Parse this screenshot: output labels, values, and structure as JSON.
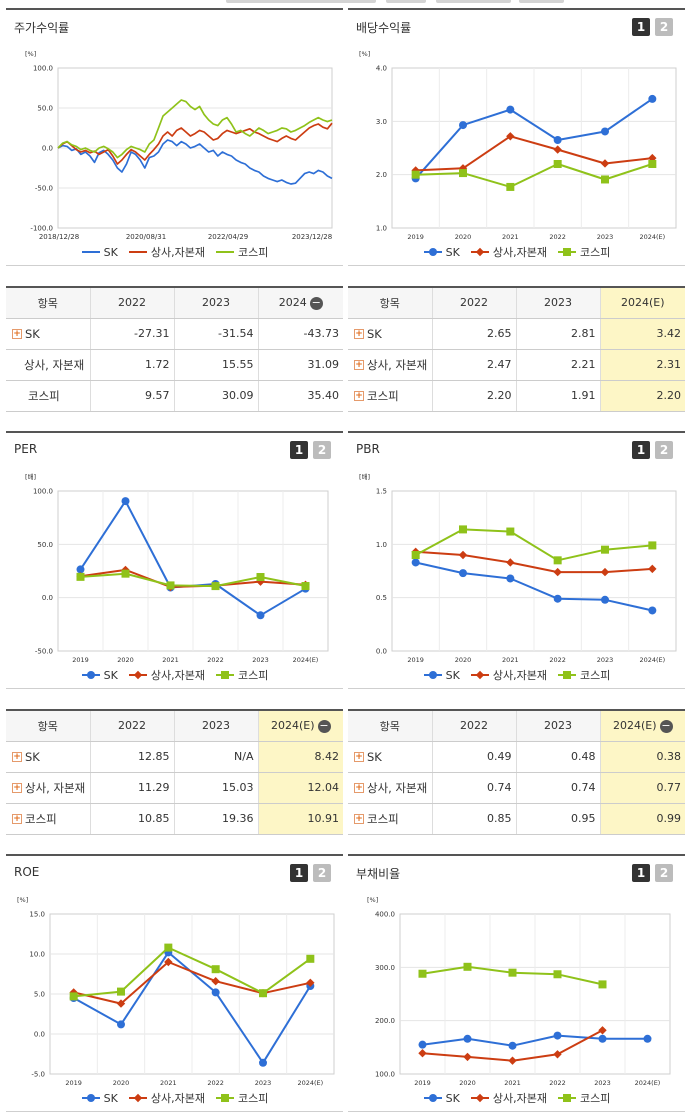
{
  "legend": [
    "SK",
    "상사,자본재",
    "코스피"
  ],
  "colors": {
    "SK": "#2e6fd6",
    "상사,자본재": "#cc3d12",
    "코스피": "#8fc21a"
  },
  "charts": {
    "stock": {
      "title": "주가수익률",
      "unit": "[%]"
    },
    "div": {
      "title": "배당수익률",
      "unit": "[%]"
    },
    "per": {
      "title": "PER",
      "unit": "[배]"
    },
    "pbr": {
      "title": "PBR",
      "unit": "[배]"
    },
    "roe": {
      "title": "ROE",
      "unit": "[%]"
    },
    "debt": {
      "title": "부채비율",
      "unit": "[%]"
    }
  },
  "page_buttons": [
    "1",
    "2"
  ],
  "table_header": "항목",
  "row_labels": [
    "SK",
    "상사, 자본재",
    "코스피"
  ],
  "tables": {
    "stock": {
      "cols": [
        "2022",
        "2023",
        "2024"
      ],
      "rows": [
        [
          "-27.31",
          "-31.54",
          "-43.73"
        ],
        [
          "1.72",
          "15.55",
          "31.09"
        ],
        [
          "9.57",
          "30.09",
          "35.40"
        ]
      ]
    },
    "div": {
      "cols": [
        "2022",
        "2023",
        "2024(E)"
      ],
      "rows": [
        [
          "2.65",
          "2.81",
          "3.42"
        ],
        [
          "2.47",
          "2.21",
          "2.31"
        ],
        [
          "2.20",
          "1.91",
          "2.20"
        ]
      ]
    },
    "per": {
      "cols": [
        "2022",
        "2023",
        "2024(E)"
      ],
      "rows": [
        [
          "12.85",
          "N/A",
          "8.42"
        ],
        [
          "11.29",
          "15.03",
          "12.04"
        ],
        [
          "10.85",
          "19.36",
          "10.91"
        ]
      ]
    },
    "pbr": {
      "cols": [
        "2022",
        "2023",
        "2024(E)"
      ],
      "rows": [
        [
          "0.49",
          "0.48",
          "0.38"
        ],
        [
          "0.74",
          "0.74",
          "0.77"
        ],
        [
          "0.85",
          "0.95",
          "0.99"
        ]
      ]
    }
  },
  "chart_data": [
    {
      "type": "line",
      "title": "주가수익률",
      "ylabel": "[%]",
      "ylim": [
        -100,
        100
      ],
      "yticks": [
        "100.0",
        "50.0",
        "0.0",
        "-50.0",
        "-100.0"
      ],
      "xticks": [
        "2018/12/28",
        "2020/08/31",
        "2022/04/29",
        "2023/12/28"
      ],
      "x_index_range": [
        0,
        60
      ],
      "series": [
        {
          "name": "SK",
          "values": [
            0,
            3,
            2,
            -3,
            -1,
            -8,
            -5,
            -10,
            -18,
            -6,
            -3,
            -8,
            -15,
            -25,
            -30,
            -20,
            -5,
            -8,
            -15,
            -25,
            -12,
            -10,
            -5,
            5,
            10,
            8,
            3,
            8,
            5,
            0,
            2,
            5,
            0,
            -5,
            -3,
            -10,
            -5,
            -8,
            -10,
            -15,
            -18,
            -20,
            -25,
            -28,
            -30,
            -35,
            -38,
            -40,
            -42,
            -40,
            -43,
            -45,
            -44,
            -38,
            -32,
            -30,
            -32,
            -28,
            -30,
            -35,
            -38
          ]
        },
        {
          "name": "상사,자본재",
          "values": [
            0,
            5,
            8,
            3,
            -2,
            -5,
            -3,
            -6,
            -4,
            -8,
            -5,
            -2,
            -10,
            -20,
            -15,
            -8,
            -2,
            -5,
            -10,
            -15,
            -8,
            -2,
            5,
            15,
            20,
            15,
            22,
            25,
            20,
            15,
            18,
            22,
            20,
            15,
            10,
            12,
            18,
            22,
            20,
            18,
            20,
            22,
            24,
            20,
            18,
            15,
            12,
            10,
            8,
            12,
            15,
            12,
            10,
            15,
            20,
            25,
            28,
            30,
            26,
            24,
            31
          ]
        },
        {
          "name": "코스피",
          "values": [
            0,
            6,
            8,
            4,
            2,
            -2,
            0,
            -3,
            -5,
            0,
            2,
            -1,
            -5,
            -12,
            -8,
            -2,
            2,
            0,
            -2,
            -5,
            5,
            10,
            25,
            40,
            45,
            50,
            55,
            60,
            58,
            52,
            48,
            52,
            42,
            35,
            30,
            28,
            35,
            38,
            30,
            20,
            22,
            18,
            15,
            20,
            25,
            22,
            18,
            20,
            22,
            25,
            24,
            20,
            22,
            25,
            28,
            32,
            35,
            38,
            35,
            33,
            35
          ]
        }
      ]
    },
    {
      "type": "line",
      "title": "배당수익률",
      "ylabel": "[%]",
      "ylim": [
        1.0,
        4.0
      ],
      "yticks": [
        "4.0",
        "3.0",
        "2.0",
        "1.0"
      ],
      "x": [
        "2019",
        "2020",
        "2021",
        "2022",
        "2023",
        "2024(E)"
      ],
      "series": [
        {
          "name": "SK",
          "values": [
            1.93,
            2.93,
            3.22,
            2.65,
            2.81,
            3.42
          ]
        },
        {
          "name": "상사,자본재",
          "values": [
            2.08,
            2.12,
            2.72,
            2.47,
            2.21,
            2.31
          ]
        },
        {
          "name": "코스피",
          "values": [
            2.0,
            2.03,
            1.77,
            2.2,
            1.91,
            2.2
          ]
        }
      ]
    },
    {
      "type": "line",
      "title": "PER",
      "ylabel": "[배]",
      "ylim": [
        -50,
        100
      ],
      "yticks": [
        "100.0",
        "50.0",
        "0.0",
        "-50.0"
      ],
      "x": [
        "2019",
        "2020",
        "2021",
        "2022",
        "2023",
        "2024(E)"
      ],
      "series": [
        {
          "name": "SK",
          "values": [
            26.5,
            90.5,
            9.5,
            12.85,
            -16.5,
            8.42
          ]
        },
        {
          "name": "상사,자본재",
          "values": [
            20.0,
            26.0,
            10.0,
            11.29,
            15.03,
            12.04
          ]
        },
        {
          "name": "코스피",
          "values": [
            19.5,
            22.5,
            11.5,
            10.85,
            19.36,
            10.91
          ]
        }
      ]
    },
    {
      "type": "line",
      "title": "PBR",
      "ylabel": "[배]",
      "ylim": [
        0.0,
        1.5
      ],
      "yticks": [
        "1.5",
        "1.0",
        "0.5",
        "0.0"
      ],
      "x": [
        "2019",
        "2020",
        "2021",
        "2022",
        "2023",
        "2024(E)"
      ],
      "series": [
        {
          "name": "SK",
          "values": [
            0.83,
            0.73,
            0.68,
            0.49,
            0.48,
            0.38
          ]
        },
        {
          "name": "상사,자본재",
          "values": [
            0.93,
            0.9,
            0.83,
            0.74,
            0.74,
            0.77
          ]
        },
        {
          "name": "코스피",
          "values": [
            0.9,
            1.14,
            1.12,
            0.85,
            0.95,
            0.99
          ]
        }
      ]
    },
    {
      "type": "line",
      "title": "ROE",
      "ylabel": "[%]",
      "ylim": [
        -5.0,
        15.0
      ],
      "yticks": [
        "15.0",
        "10.0",
        "5.0",
        "0.0",
        "-5.0"
      ],
      "x": [
        "2019",
        "2020",
        "2021",
        "2022",
        "2023",
        "2024(E)"
      ],
      "series": [
        {
          "name": "SK",
          "values": [
            4.5,
            1.2,
            10.2,
            5.2,
            -3.6,
            6.0
          ]
        },
        {
          "name": "상사,자본재",
          "values": [
            5.2,
            3.8,
            9.0,
            6.6,
            5.1,
            6.4
          ]
        },
        {
          "name": "코스피",
          "values": [
            4.7,
            5.3,
            10.8,
            8.1,
            5.1,
            9.4
          ]
        }
      ]
    },
    {
      "type": "line",
      "title": "부채비율",
      "ylabel": "[%]",
      "ylim": [
        100.0,
        400.0
      ],
      "yticks": [
        "400.0",
        "300.0",
        "200.0",
        "100.0"
      ],
      "x": [
        "2019",
        "2020",
        "2021",
        "2022",
        "2023",
        "2024(E)"
      ],
      "series": [
        {
          "name": "SK",
          "values": [
            155,
            166,
            153,
            172,
            166,
            166
          ]
        },
        {
          "name": "상사,자본재",
          "values": [
            139,
            132,
            125,
            137,
            182,
            null
          ]
        },
        {
          "name": "코스피",
          "values": [
            288,
            301,
            290,
            287,
            268,
            null
          ]
        }
      ]
    }
  ]
}
